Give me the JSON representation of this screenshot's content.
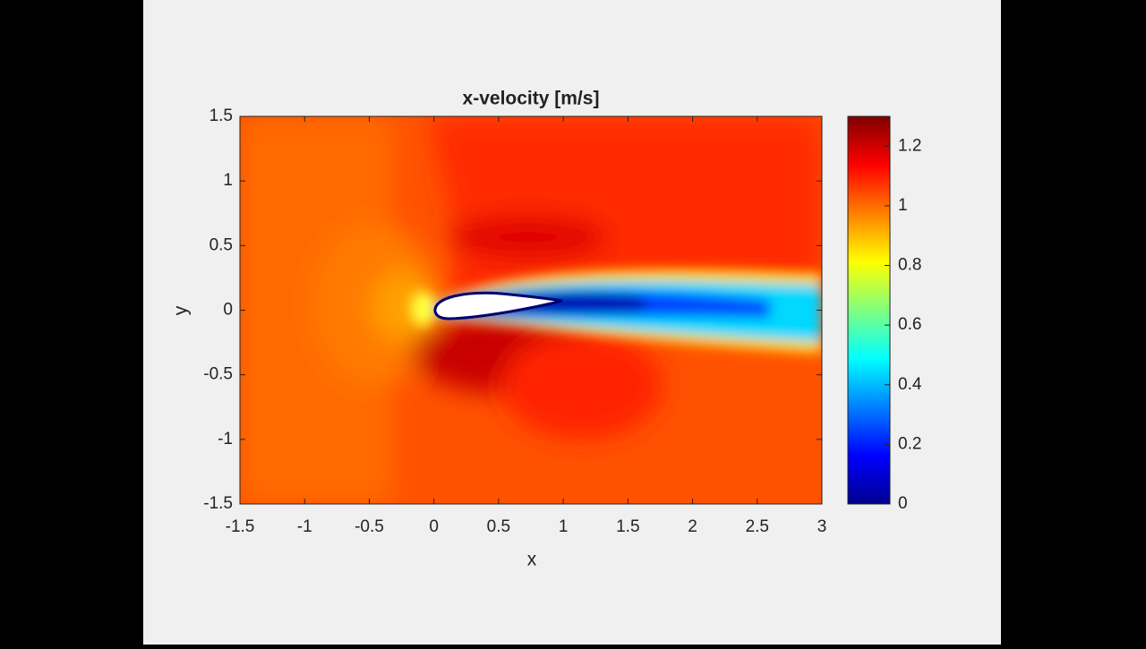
{
  "chart_data": {
    "type": "contour",
    "title": "x-velocity [m/s]",
    "x_label": "x",
    "y_label": "y",
    "xlim": [
      -1.5,
      3
    ],
    "xticks": [
      -1.5,
      -1,
      -0.5,
      0,
      0.5,
      1,
      1.5,
      2,
      2.5,
      3
    ],
    "ylim": [
      -1.5,
      1.5
    ],
    "yticks": [
      -1.5,
      -1,
      -0.5,
      0,
      0.5,
      1,
      1.5
    ],
    "colormap": "jet",
    "clim": [
      0,
      1.3
    ],
    "cticks": [
      0,
      0.2,
      0.4,
      0.6,
      0.8,
      1,
      1.2
    ]
  }
}
